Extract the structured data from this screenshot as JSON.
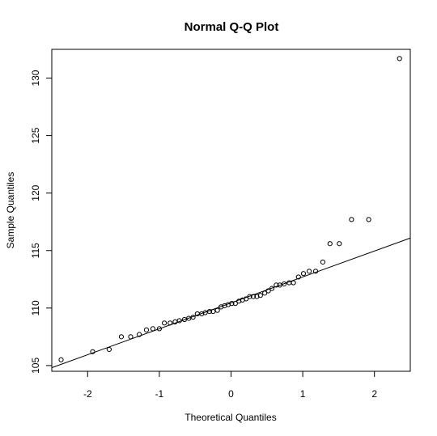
{
  "chart_data": {
    "type": "scatter",
    "title": "Normal Q-Q Plot",
    "xlabel": "Theoretical Quantiles",
    "ylabel": "Sample Quantiles",
    "xlim": [
      -2.5,
      2.5
    ],
    "ylim": [
      104.5,
      132.5
    ],
    "x_ticks": [
      -2,
      -1,
      0,
      1,
      2
    ],
    "x_tick_labels": [
      "-2",
      "-1",
      "0",
      "1",
      "2"
    ],
    "y_ticks": [
      105,
      110,
      115,
      120,
      125,
      130
    ],
    "y_tick_labels": [
      "105",
      "110",
      "115",
      "120",
      "125",
      "130"
    ],
    "grid": false,
    "legend": "none",
    "points": [
      [
        -2.37,
        105.5
      ],
      [
        -1.93,
        106.2
      ],
      [
        -1.7,
        106.4
      ],
      [
        -1.53,
        107.5
      ],
      [
        -1.4,
        107.5
      ],
      [
        -1.28,
        107.7
      ],
      [
        -1.18,
        108.1
      ],
      [
        -1.09,
        108.2
      ],
      [
        -1.0,
        108.2
      ],
      [
        -0.93,
        108.7
      ],
      [
        -0.85,
        108.7
      ],
      [
        -0.78,
        108.8
      ],
      [
        -0.72,
        108.9
      ],
      [
        -0.65,
        109.0
      ],
      [
        -0.59,
        109.1
      ],
      [
        -0.53,
        109.2
      ],
      [
        -0.47,
        109.5
      ],
      [
        -0.41,
        109.5
      ],
      [
        -0.36,
        109.6
      ],
      [
        -0.3,
        109.7
      ],
      [
        -0.25,
        109.7
      ],
      [
        -0.19,
        109.8
      ],
      [
        -0.14,
        110.1
      ],
      [
        -0.09,
        110.2
      ],
      [
        -0.04,
        110.3
      ],
      [
        0.01,
        110.4
      ],
      [
        0.06,
        110.4
      ],
      [
        0.11,
        110.6
      ],
      [
        0.16,
        110.7
      ],
      [
        0.21,
        110.8
      ],
      [
        0.26,
        111.0
      ],
      [
        0.31,
        111.0
      ],
      [
        0.36,
        111.0
      ],
      [
        0.41,
        111.1
      ],
      [
        0.47,
        111.3
      ],
      [
        0.52,
        111.5
      ],
      [
        0.57,
        111.7
      ],
      [
        0.63,
        112.0
      ],
      [
        0.68,
        112.0
      ],
      [
        0.74,
        112.1
      ],
      [
        0.81,
        112.2
      ],
      [
        0.87,
        112.2
      ],
      [
        0.94,
        112.7
      ],
      [
        1.01,
        113.0
      ],
      [
        1.09,
        113.2
      ],
      [
        1.18,
        113.2
      ],
      [
        1.28,
        114.0
      ],
      [
        1.38,
        115.6
      ],
      [
        1.51,
        115.6
      ],
      [
        1.68,
        117.7
      ],
      [
        1.92,
        117.7
      ],
      [
        2.35,
        131.7
      ]
    ],
    "reference_line": {
      "x": [
        -2.55,
        2.55
      ],
      "y": [
        104.7,
        116.2
      ]
    },
    "colors": {
      "points": "#000000",
      "line": "#000000",
      "background": "#ffffff"
    }
  }
}
